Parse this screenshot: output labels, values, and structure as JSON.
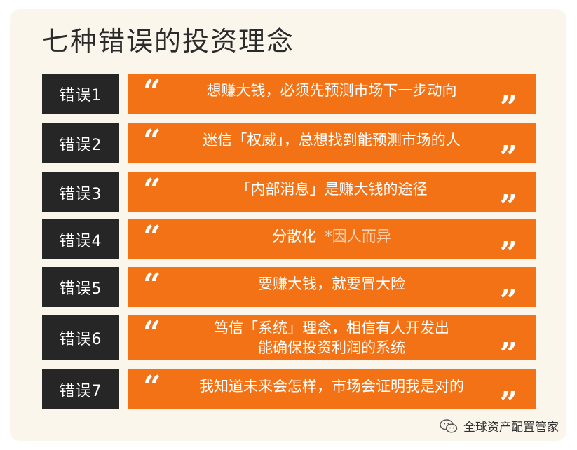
{
  "title": "七种错误的投资理念",
  "items": [
    {
      "label": "错误1",
      "text": "想赚大钱，必须先预测市场下一步动向"
    },
    {
      "label": "错误2",
      "text": "迷信「权威」，总想找到能预测市场的人"
    },
    {
      "label": "错误3",
      "text": "「内部消息」是赚大钱的途径"
    },
    {
      "label": "错误4",
      "text": "分散化",
      "note": "*因人而异"
    },
    {
      "label": "错误5",
      "text": "要赚大钱，就要冒大险"
    },
    {
      "label": "错误6",
      "line1": "笃信「系统」理念，相信有人开发出",
      "line2": "能确保投资利润的系统"
    },
    {
      "label": "错误7",
      "text": "我知道未来会怎样，市场会证明我是对的"
    }
  ],
  "quote_open": "“",
  "quote_close": "”",
  "footer": {
    "icon": "wechat-icon",
    "text": "全球资产配置管家"
  }
}
